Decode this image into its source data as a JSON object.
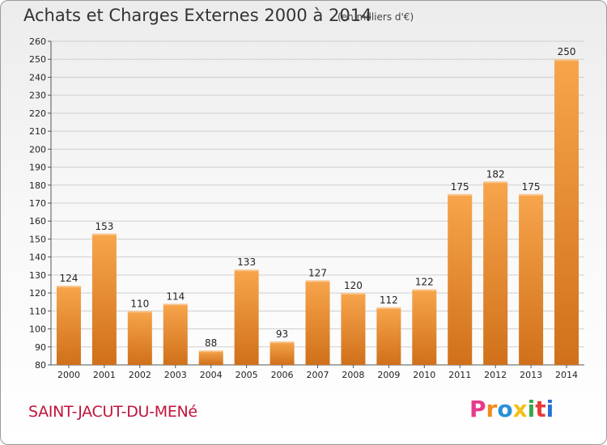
{
  "header": {
    "title": "Achats et Charges Externes 2000 à 2014",
    "subtitle": "(en milliers d'€)"
  },
  "footer": {
    "commune": "SAINT-JACUT-DU-MENé",
    "logo": "Proxiti",
    "logo_colors": [
      "#e83a8a",
      "#f28c1a",
      "#2a8fd8",
      "#f2c01a",
      "#36a84a",
      "#e83a3a",
      "#2a6fd8"
    ]
  },
  "colors": {
    "bar_light": "#f7a54c",
    "bar_dark": "#d0701a",
    "grid": "#cfcfcf"
  },
  "chart_data": {
    "type": "bar",
    "title": "Achats et Charges Externes 2000 à 2014",
    "subtitle": "(en milliers d'€)",
    "categories": [
      "2000",
      "2001",
      "2002",
      "2003",
      "2004",
      "2005",
      "2006",
      "2007",
      "2008",
      "2009",
      "2010",
      "2011",
      "2012",
      "2013",
      "2014"
    ],
    "values": [
      124,
      153,
      110,
      114,
      88,
      133,
      93,
      127,
      120,
      112,
      122,
      175,
      182,
      175,
      250
    ],
    "ylim": [
      80,
      260
    ],
    "yticks": [
      80,
      90,
      100,
      110,
      120,
      130,
      140,
      150,
      160,
      170,
      180,
      190,
      200,
      210,
      220,
      230,
      240,
      250,
      260
    ],
    "grid": true,
    "xlabel": "",
    "ylabel": ""
  }
}
